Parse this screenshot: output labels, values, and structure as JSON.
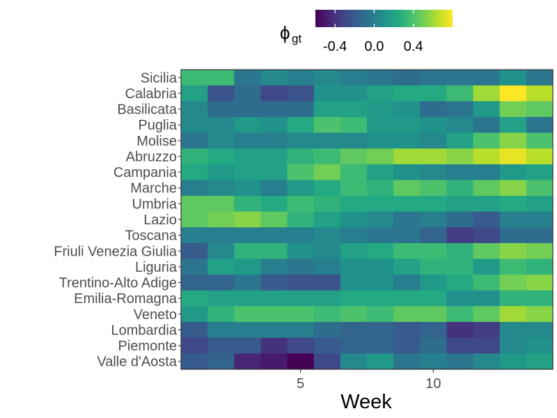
{
  "chart_data": {
    "type": "heatmap",
    "xlabel": "Week",
    "ylabel": "",
    "legend": {
      "title_main": "ϕ",
      "title_sub": "gt",
      "ticks": [
        "-0.4",
        "0.0",
        "0.4"
      ],
      "tick_values": [
        -0.4,
        0.0,
        0.4
      ],
      "range": [
        -0.6,
        0.8
      ],
      "palette": "viridis",
      "placement": "top"
    },
    "x": {
      "values": [
        1,
        2,
        3,
        4,
        5,
        6,
        7,
        8,
        9,
        10,
        11,
        12,
        13,
        14
      ],
      "ticks": [
        5,
        10
      ],
      "tick_labels": [
        "5",
        "10"
      ],
      "range": [
        0.5,
        14.5
      ]
    },
    "rows": [
      "Sicilia",
      "Calabria",
      "Basilicata",
      "Puglia",
      "Molise",
      "Abruzzo",
      "Campania",
      "Marche",
      "Umbria",
      "Lazio",
      "Toscana",
      "Friuli Venezia Giulia",
      "Liguria",
      "Trentino-Alto Adige",
      "Emilia-Romagna",
      "Veneto",
      "Lombardia",
      "Piemonte",
      "Valle d'Aosta"
    ],
    "values": [
      [
        0.35,
        0.35,
        -0.05,
        0.05,
        0.0,
        0.05,
        0.0,
        -0.05,
        -0.1,
        -0.05,
        -0.05,
        -0.05,
        0.1,
        -0.05
      ],
      [
        0.2,
        -0.25,
        -0.1,
        -0.3,
        -0.25,
        0.1,
        0.1,
        0.2,
        0.25,
        0.25,
        0.35,
        0.6,
        0.8,
        0.65
      ],
      [
        0.05,
        -0.1,
        -0.1,
        -0.1,
        -0.1,
        0.2,
        0.2,
        0.15,
        0.1,
        -0.1,
        -0.05,
        0.15,
        0.5,
        0.45
      ],
      [
        0.05,
        0.05,
        0.15,
        0.1,
        0.25,
        0.4,
        0.35,
        0.15,
        0.15,
        0.1,
        0.05,
        -0.05,
        0.2,
        -0.05
      ],
      [
        -0.05,
        0.05,
        0.0,
        0.0,
        0.05,
        0.05,
        0.05,
        0.1,
        0.1,
        0.05,
        0.2,
        0.4,
        0.55,
        0.4
      ],
      [
        0.3,
        0.25,
        0.2,
        0.2,
        0.3,
        0.35,
        0.45,
        0.5,
        0.6,
        0.6,
        0.55,
        0.65,
        0.75,
        0.65
      ],
      [
        0.25,
        0.15,
        0.2,
        0.2,
        0.4,
        0.5,
        0.35,
        0.2,
        0.1,
        0.05,
        0.0,
        0.0,
        0.15,
        0.2
      ],
      [
        0.0,
        0.05,
        0.1,
        0.0,
        0.15,
        0.25,
        0.35,
        0.3,
        0.45,
        0.4,
        0.3,
        0.45,
        0.55,
        0.4
      ],
      [
        0.45,
        0.45,
        0.3,
        0.25,
        0.35,
        0.3,
        0.25,
        0.25,
        0.25,
        0.25,
        0.2,
        0.2,
        0.25,
        0.2
      ],
      [
        0.45,
        0.5,
        0.55,
        0.45,
        0.3,
        0.2,
        0.1,
        0.05,
        -0.05,
        0.0,
        -0.1,
        -0.2,
        0.0,
        0.0
      ],
      [
        0.0,
        0.0,
        0.0,
        0.0,
        0.0,
        0.05,
        0.0,
        -0.05,
        -0.05,
        -0.15,
        -0.35,
        -0.3,
        -0.1,
        -0.1
      ],
      [
        -0.2,
        0.05,
        0.3,
        0.3,
        0.1,
        0.05,
        0.2,
        0.25,
        0.35,
        0.35,
        0.3,
        0.45,
        0.55,
        0.5
      ],
      [
        -0.05,
        0.2,
        0.15,
        0.0,
        -0.05,
        0.0,
        0.1,
        0.1,
        0.2,
        0.3,
        0.3,
        0.15,
        0.35,
        0.3
      ],
      [
        -0.15,
        -0.15,
        -0.05,
        -0.2,
        -0.25,
        -0.25,
        0.1,
        0.1,
        0.0,
        0.15,
        0.25,
        0.35,
        0.5,
        0.55
      ],
      [
        0.25,
        0.2,
        0.2,
        0.2,
        0.2,
        0.2,
        0.25,
        0.25,
        0.25,
        0.25,
        0.1,
        0.1,
        0.3,
        0.3
      ],
      [
        0.15,
        0.3,
        0.4,
        0.4,
        0.4,
        0.35,
        0.4,
        0.35,
        0.45,
        0.45,
        0.35,
        0.45,
        0.6,
        0.55
      ],
      [
        -0.2,
        0.0,
        0.0,
        0.0,
        0.0,
        -0.1,
        -0.15,
        -0.15,
        -0.2,
        -0.15,
        -0.4,
        -0.35,
        0.05,
        0.05
      ],
      [
        -0.3,
        -0.2,
        -0.2,
        -0.4,
        -0.3,
        -0.2,
        -0.15,
        -0.15,
        -0.2,
        -0.1,
        -0.3,
        -0.3,
        0.05,
        0.1
      ],
      [
        -0.2,
        -0.15,
        -0.45,
        -0.5,
        -0.6,
        -0.3,
        0.05,
        0.15,
        -0.05,
        0.0,
        -0.05,
        0.05,
        0.15,
        0.2
      ]
    ]
  }
}
